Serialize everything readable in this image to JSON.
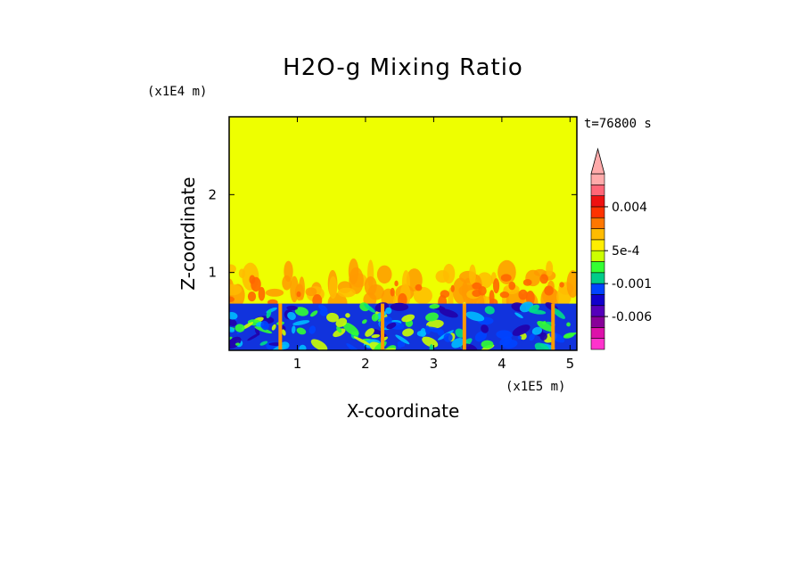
{
  "chart_data": {
    "type": "heatmap",
    "title": "H2O-g Mixing Ratio",
    "xlabel": "X-coordinate",
    "ylabel": "Z-coordinate",
    "x_units": "(x1E5 m)",
    "y_units": "(x1E4 m)",
    "time_label": "t=76800 s",
    "xlim": [
      0,
      5.1
    ],
    "ylim": [
      0,
      3.0
    ],
    "x_ticks": [
      1,
      2,
      3,
      4,
      5
    ],
    "x_tick_labels": [
      "1",
      "2",
      "3",
      "4",
      "5"
    ],
    "y_ticks": [
      1,
      2
    ],
    "y_tick_labels": [
      "1",
      "2"
    ],
    "boundary_layer_top": 0.6,
    "plume_layer_top": 1.05,
    "background_value_color": "#eeff00",
    "colorbar": {
      "colors": [
        "#ff33cc",
        "#dd11aa",
        "#880099",
        "#5500bb",
        "#1100cc",
        "#0044ff",
        "#00cc88",
        "#33ff33",
        "#ccff00",
        "#ffee00",
        "#ffbb00",
        "#ff7700",
        "#ff3300",
        "#ee1111",
        "#ff6677",
        "#ffaaaa"
      ],
      "labels": [
        "-0.006",
        "-0.001",
        "5e-4",
        "0.004"
      ],
      "label_positions_index": [
        3,
        6,
        9,
        13
      ]
    }
  }
}
